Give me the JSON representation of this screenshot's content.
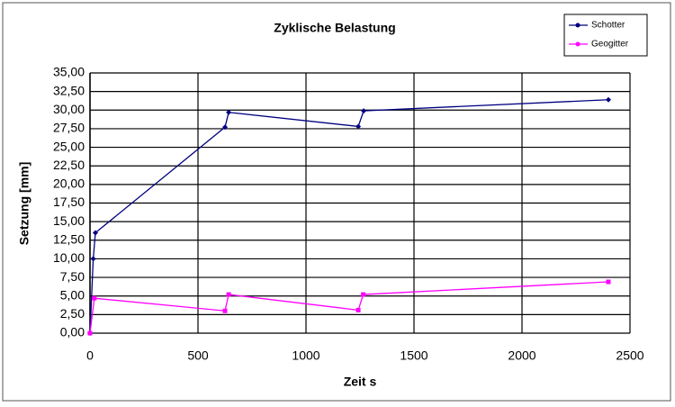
{
  "chart_data": {
    "type": "line",
    "title": "Zyklische Belastung",
    "x_label": "Zeit s",
    "y_label": "Setzung [mm]",
    "series": [
      {
        "name": "Schotter",
        "color": "#000080",
        "marker": "diamond",
        "x": [
          0,
          15,
          25,
          625,
          642,
          1242,
          1267,
          2400
        ],
        "values": [
          0,
          10,
          13.5,
          27.7,
          29.7,
          27.8,
          29.9,
          31.4
        ]
      },
      {
        "name": "Geogitter",
        "color": "#ff00ff",
        "marker": "square",
        "x": [
          0,
          20,
          625,
          642,
          1242,
          1265,
          2400
        ],
        "values": [
          0,
          4.7,
          3.0,
          5.2,
          3.1,
          5.2,
          6.9
        ]
      }
    ],
    "xlim": [
      0,
      2500
    ],
    "xticks": [
      0,
      500,
      1000,
      1500,
      2000,
      2500
    ],
    "ylim": [
      0,
      35
    ],
    "yticks": [
      {
        "value": 0,
        "label": "0,00"
      },
      {
        "value": 2.5,
        "label": "2,50"
      },
      {
        "value": 5,
        "label": "5,00"
      },
      {
        "value": 7.5,
        "label": "7,50"
      },
      {
        "value": 10,
        "label": "10,00"
      },
      {
        "value": 12.5,
        "label": "12,50"
      },
      {
        "value": 15,
        "label": "15,00"
      },
      {
        "value": 17.5,
        "label": "17,50"
      },
      {
        "value": 20,
        "label": "20,00"
      },
      {
        "value": 22.5,
        "label": "22,50"
      },
      {
        "value": 25,
        "label": "25,00"
      },
      {
        "value": 27.5,
        "label": "27,50"
      },
      {
        "value": 30,
        "label": "30,00"
      },
      {
        "value": 32.5,
        "label": "32,50"
      },
      {
        "value": 35,
        "label": "35,00"
      }
    ],
    "grid": true,
    "legend": "top-right"
  }
}
